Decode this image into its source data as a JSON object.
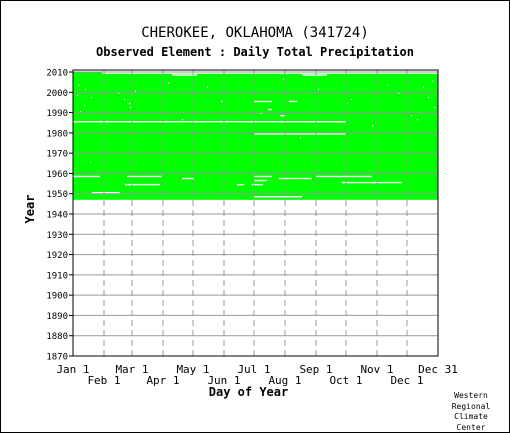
{
  "header": {
    "title": "CHEROKEE, OKLAHOMA   (341724)",
    "subtitle": "Observed Element : Daily Total Precipitation"
  },
  "credit": {
    "line1": "Western",
    "line2": "Regional",
    "line3": "Climate",
    "line4": "Center"
  },
  "colors": {
    "data_fill": "#00ff00",
    "gap": "#ffffff",
    "grid": "#999999",
    "frame": "#000000"
  },
  "chart_data": {
    "type": "heatmap",
    "title": "CHEROKEE, OKLAHOMA   (341724)",
    "subtitle": "Observed Element : Daily Total Precipitation",
    "xlabel": "Day of Year",
    "ylabel": "Year",
    "xlim": [
      1,
      366
    ],
    "ylim": [
      1870,
      2011
    ],
    "x_ticks_top_row": [
      {
        "label": "Jan 1",
        "day": 1
      },
      {
        "label": "Mar 1",
        "day": 60
      },
      {
        "label": "May 1",
        "day": 121
      },
      {
        "label": "Jul 1",
        "day": 182
      },
      {
        "label": "Sep 1",
        "day": 244
      },
      {
        "label": "Nov 1",
        "day": 305
      },
      {
        "label": "Dec 31",
        "day": 366
      }
    ],
    "x_ticks_bottom_row": [
      {
        "label": "Feb 1",
        "day": 32
      },
      {
        "label": "Apr 1",
        "day": 91
      },
      {
        "label": "Jun 1",
        "day": 152
      },
      {
        "label": "Aug 1",
        "day": 213
      },
      {
        "label": "Oct 1",
        "day": 274
      },
      {
        "label": "Dec 1",
        "day": 335
      }
    ],
    "y_ticks": [
      1870,
      1880,
      1890,
      1900,
      1910,
      1920,
      1930,
      1940,
      1950,
      1960,
      1970,
      1980,
      1990,
      2000,
      2010
    ],
    "grid": true,
    "data_coverage": {
      "start_year": 1947,
      "end_year": 2009,
      "end_day_last_year": 366
    },
    "missing_segments": [
      {
        "year": 2009,
        "start_day": 30,
        "end_day": 366
      },
      {
        "year": 2008,
        "start_day": 100,
        "end_day": 125
      },
      {
        "year": 2008,
        "start_day": 230,
        "end_day": 255
      },
      {
        "year": 1995,
        "start_day": 182,
        "end_day": 200
      },
      {
        "year": 1995,
        "start_day": 217,
        "end_day": 225
      },
      {
        "year": 1991,
        "start_day": 196,
        "end_day": 200
      },
      {
        "year": 1988,
        "start_day": 208,
        "end_day": 213
      },
      {
        "year": 1985,
        "start_day": 1,
        "end_day": 274
      },
      {
        "year": 1979,
        "start_day": 182,
        "end_day": 274
      },
      {
        "year": 1958,
        "start_day": 1,
        "end_day": 28
      },
      {
        "year": 1958,
        "start_day": 55,
        "end_day": 90
      },
      {
        "year": 1958,
        "start_day": 182,
        "end_day": 200
      },
      {
        "year": 1958,
        "start_day": 244,
        "end_day": 300
      },
      {
        "year": 1957,
        "start_day": 110,
        "end_day": 122
      },
      {
        "year": 1957,
        "start_day": 207,
        "end_day": 240
      },
      {
        "year": 1956,
        "start_day": 182,
        "end_day": 195
      },
      {
        "year": 1955,
        "start_day": 270,
        "end_day": 330
      },
      {
        "year": 1954,
        "start_day": 53,
        "end_day": 88
      },
      {
        "year": 1954,
        "start_day": 165,
        "end_day": 172
      },
      {
        "year": 1954,
        "start_day": 180,
        "end_day": 191
      },
      {
        "year": 1950,
        "start_day": 20,
        "end_day": 48
      },
      {
        "year": 1948,
        "start_day": 182,
        "end_day": 230
      }
    ],
    "scattered_missing_days": [
      {
        "year": 2003,
        "day": 6
      },
      {
        "year": 2001,
        "day": 13
      },
      {
        "year": 1998,
        "day": 5
      },
      {
        "year": 1997,
        "day": 19
      },
      {
        "year": 1993,
        "day": 12
      },
      {
        "year": 1990,
        "day": 8
      },
      {
        "year": 1999,
        "day": 46
      },
      {
        "year": 1996,
        "day": 52
      },
      {
        "year": 1992,
        "day": 58
      },
      {
        "year": 1994,
        "day": 57
      },
      {
        "year": 2000,
        "day": 63
      },
      {
        "year": 2004,
        "day": 96
      },
      {
        "year": 1986,
        "day": 110
      },
      {
        "year": 2002,
        "day": 135
      },
      {
        "year": 1995,
        "day": 149
      },
      {
        "year": 1989,
        "day": 188
      },
      {
        "year": 2006,
        "day": 211
      },
      {
        "year": 1977,
        "day": 228
      },
      {
        "year": 2001,
        "day": 246
      },
      {
        "year": 1996,
        "day": 279
      },
      {
        "year": 2003,
        "day": 315
      },
      {
        "year": 1999,
        "day": 326
      },
      {
        "year": 1988,
        "day": 339
      },
      {
        "year": 1986,
        "day": 345
      },
      {
        "year": 2002,
        "day": 351
      },
      {
        "year": 1997,
        "day": 356
      },
      {
        "year": 2005,
        "day": 360
      },
      {
        "year": 1992,
        "day": 362
      },
      {
        "year": 1983,
        "day": 300
      },
      {
        "year": 1965,
        "day": 18
      }
    ]
  }
}
